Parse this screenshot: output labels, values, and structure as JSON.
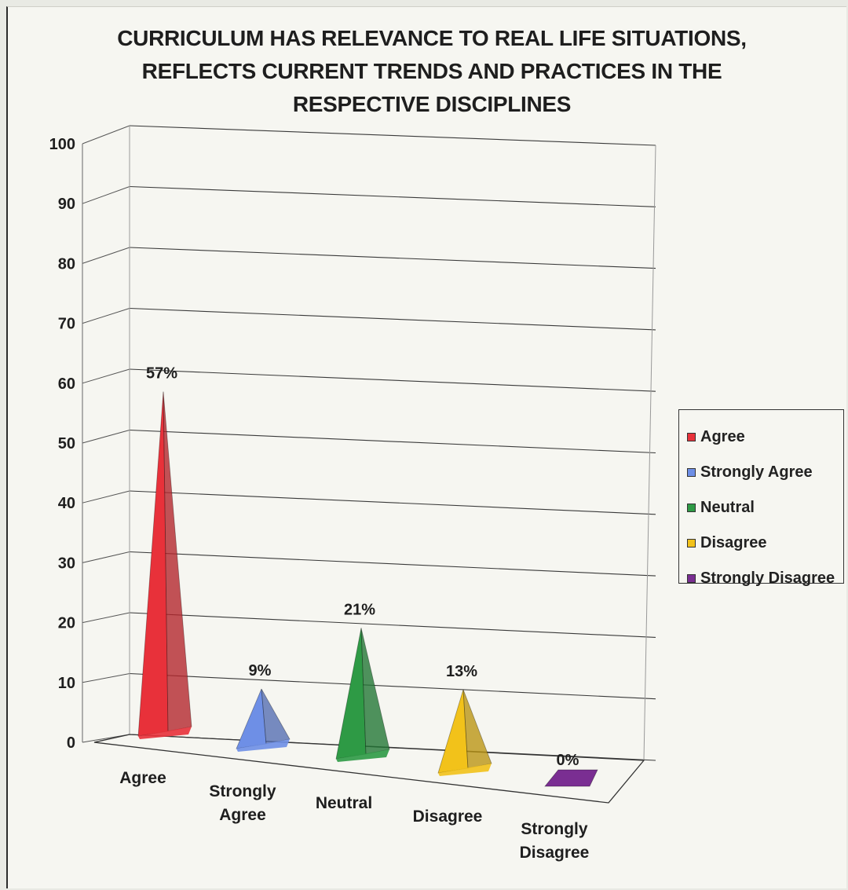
{
  "chart_data": {
    "type": "bar",
    "title_lines": [
      "CURRICULUM HAS RELEVANCE TO REAL LIFE SITUATIONS,",
      "REFLECTS CURRENT TRENDS AND PRACTICES IN THE",
      "RESPECTIVE DISCIPLINES"
    ],
    "categories": [
      [
        "Agree"
      ],
      [
        "Strongly",
        "Agree"
      ],
      [
        "Neutral"
      ],
      [
        "Disagree"
      ],
      [
        "Strongly",
        "Disagree"
      ]
    ],
    "values": [
      57,
      9,
      21,
      13,
      0
    ],
    "value_labels": [
      "57%",
      "9%",
      "21%",
      "13%",
      "0%"
    ],
    "colors": [
      "#e8313a",
      "#6e8fe6",
      "#2e9a45",
      "#f2c21a",
      "#7a2e92"
    ],
    "ylim": [
      0,
      100
    ],
    "yticks": [
      0,
      10,
      20,
      30,
      40,
      50,
      60,
      70,
      80,
      90,
      100
    ],
    "grid": true,
    "legend": {
      "position": "right",
      "entries": [
        "Agree",
        "Strongly Agree",
        "Neutral",
        "Disagree",
        "Strongly Disagree"
      ]
    }
  }
}
